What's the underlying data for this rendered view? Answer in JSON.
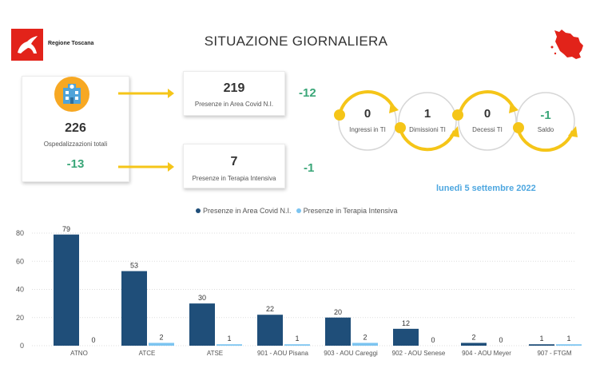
{
  "header": {
    "brand": "Regione Toscana",
    "title": "SITUAZIONE GIORNALIERA",
    "brand_color": "#e2231a"
  },
  "summary": {
    "hospital_icon": "hospital-icon",
    "total_value": "226",
    "total_label": "Ospedalizzazioni totali",
    "total_delta": "-13",
    "covid_value": "219",
    "covid_label": "Presenze in Area Covid N.I.",
    "covid_delta": "-12",
    "ti_value": "7",
    "ti_label": "Presenze in Terapia Intensiva",
    "ti_delta": "-1",
    "delta_color": "#3aa678"
  },
  "flow": [
    {
      "value": "0",
      "label": "Ingressi in TI"
    },
    {
      "value": "1",
      "label": "Dimissioni TI"
    },
    {
      "value": "0",
      "label": "Decessi TI"
    },
    {
      "value": "-1",
      "label": "Saldo"
    }
  ],
  "date": "lunedì 5 settembre 2022",
  "chart_data": {
    "type": "bar",
    "categories": [
      "ATNO",
      "ATCE",
      "ATSE",
      "901 - AOU Pisana",
      "903 - AOU Careggi",
      "902 - AOU Senese",
      "904 - AOU Meyer",
      "907 - FTGM"
    ],
    "series": [
      {
        "name": "Presenze in Area Covid N.I.",
        "color": "#1f4e79",
        "values": [
          79,
          53,
          30,
          22,
          20,
          12,
          2,
          1
        ]
      },
      {
        "name": "Presenze in Terapia Intensiva",
        "color": "#7cc4f0",
        "values": [
          0,
          2,
          1,
          1,
          2,
          0,
          0,
          1
        ]
      }
    ],
    "yticks": [
      0,
      20,
      40,
      60,
      80
    ],
    "ylim": [
      0,
      80
    ],
    "legend": "top-center",
    "grid": true
  }
}
